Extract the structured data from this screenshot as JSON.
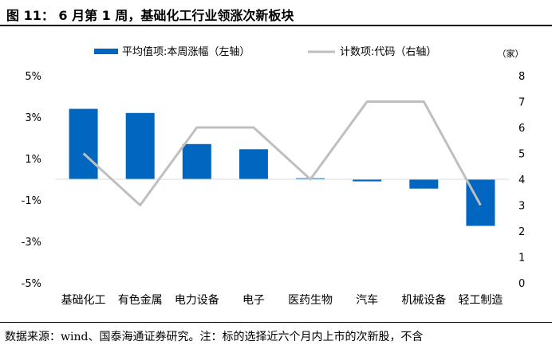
{
  "header": {
    "title": "图 11： 6 月第 1 周，基础化工行业领涨次新板块"
  },
  "footer": {
    "source": "数据来源：wind、国泰海通证券研究。注：标的选择近六个月内上市的次新股，不含"
  },
  "chart_data": {
    "type": "bar+line",
    "categories": [
      "基础化工",
      "有色金属",
      "电力设备",
      "电子",
      "医药生物",
      "汽车",
      "机械设备",
      "轻工制造"
    ],
    "series": [
      {
        "name": "平均值项:本周涨幅（左轴）",
        "type": "bar",
        "axis": "left",
        "color": "#0066bf",
        "values": [
          3.4,
          3.2,
          1.7,
          1.45,
          0.05,
          -0.1,
          -0.45,
          -2.25
        ]
      },
      {
        "name": "计数项:代码（右轴）",
        "type": "line",
        "axis": "right",
        "color": "#bfbfbf",
        "values": [
          5,
          3,
          6,
          6,
          4,
          7,
          7,
          3
        ]
      }
    ],
    "left_axis": {
      "min": -5,
      "max": 5,
      "ticks": [
        "-5%",
        "-3%",
        "-1%",
        "1%",
        "3%",
        "5%"
      ]
    },
    "right_axis": {
      "min": 0,
      "max": 8,
      "unit_label": "（家）",
      "ticks": [
        "0",
        "1",
        "2",
        "3",
        "4",
        "5",
        "6",
        "7",
        "8"
      ]
    },
    "legend_position": "top"
  }
}
